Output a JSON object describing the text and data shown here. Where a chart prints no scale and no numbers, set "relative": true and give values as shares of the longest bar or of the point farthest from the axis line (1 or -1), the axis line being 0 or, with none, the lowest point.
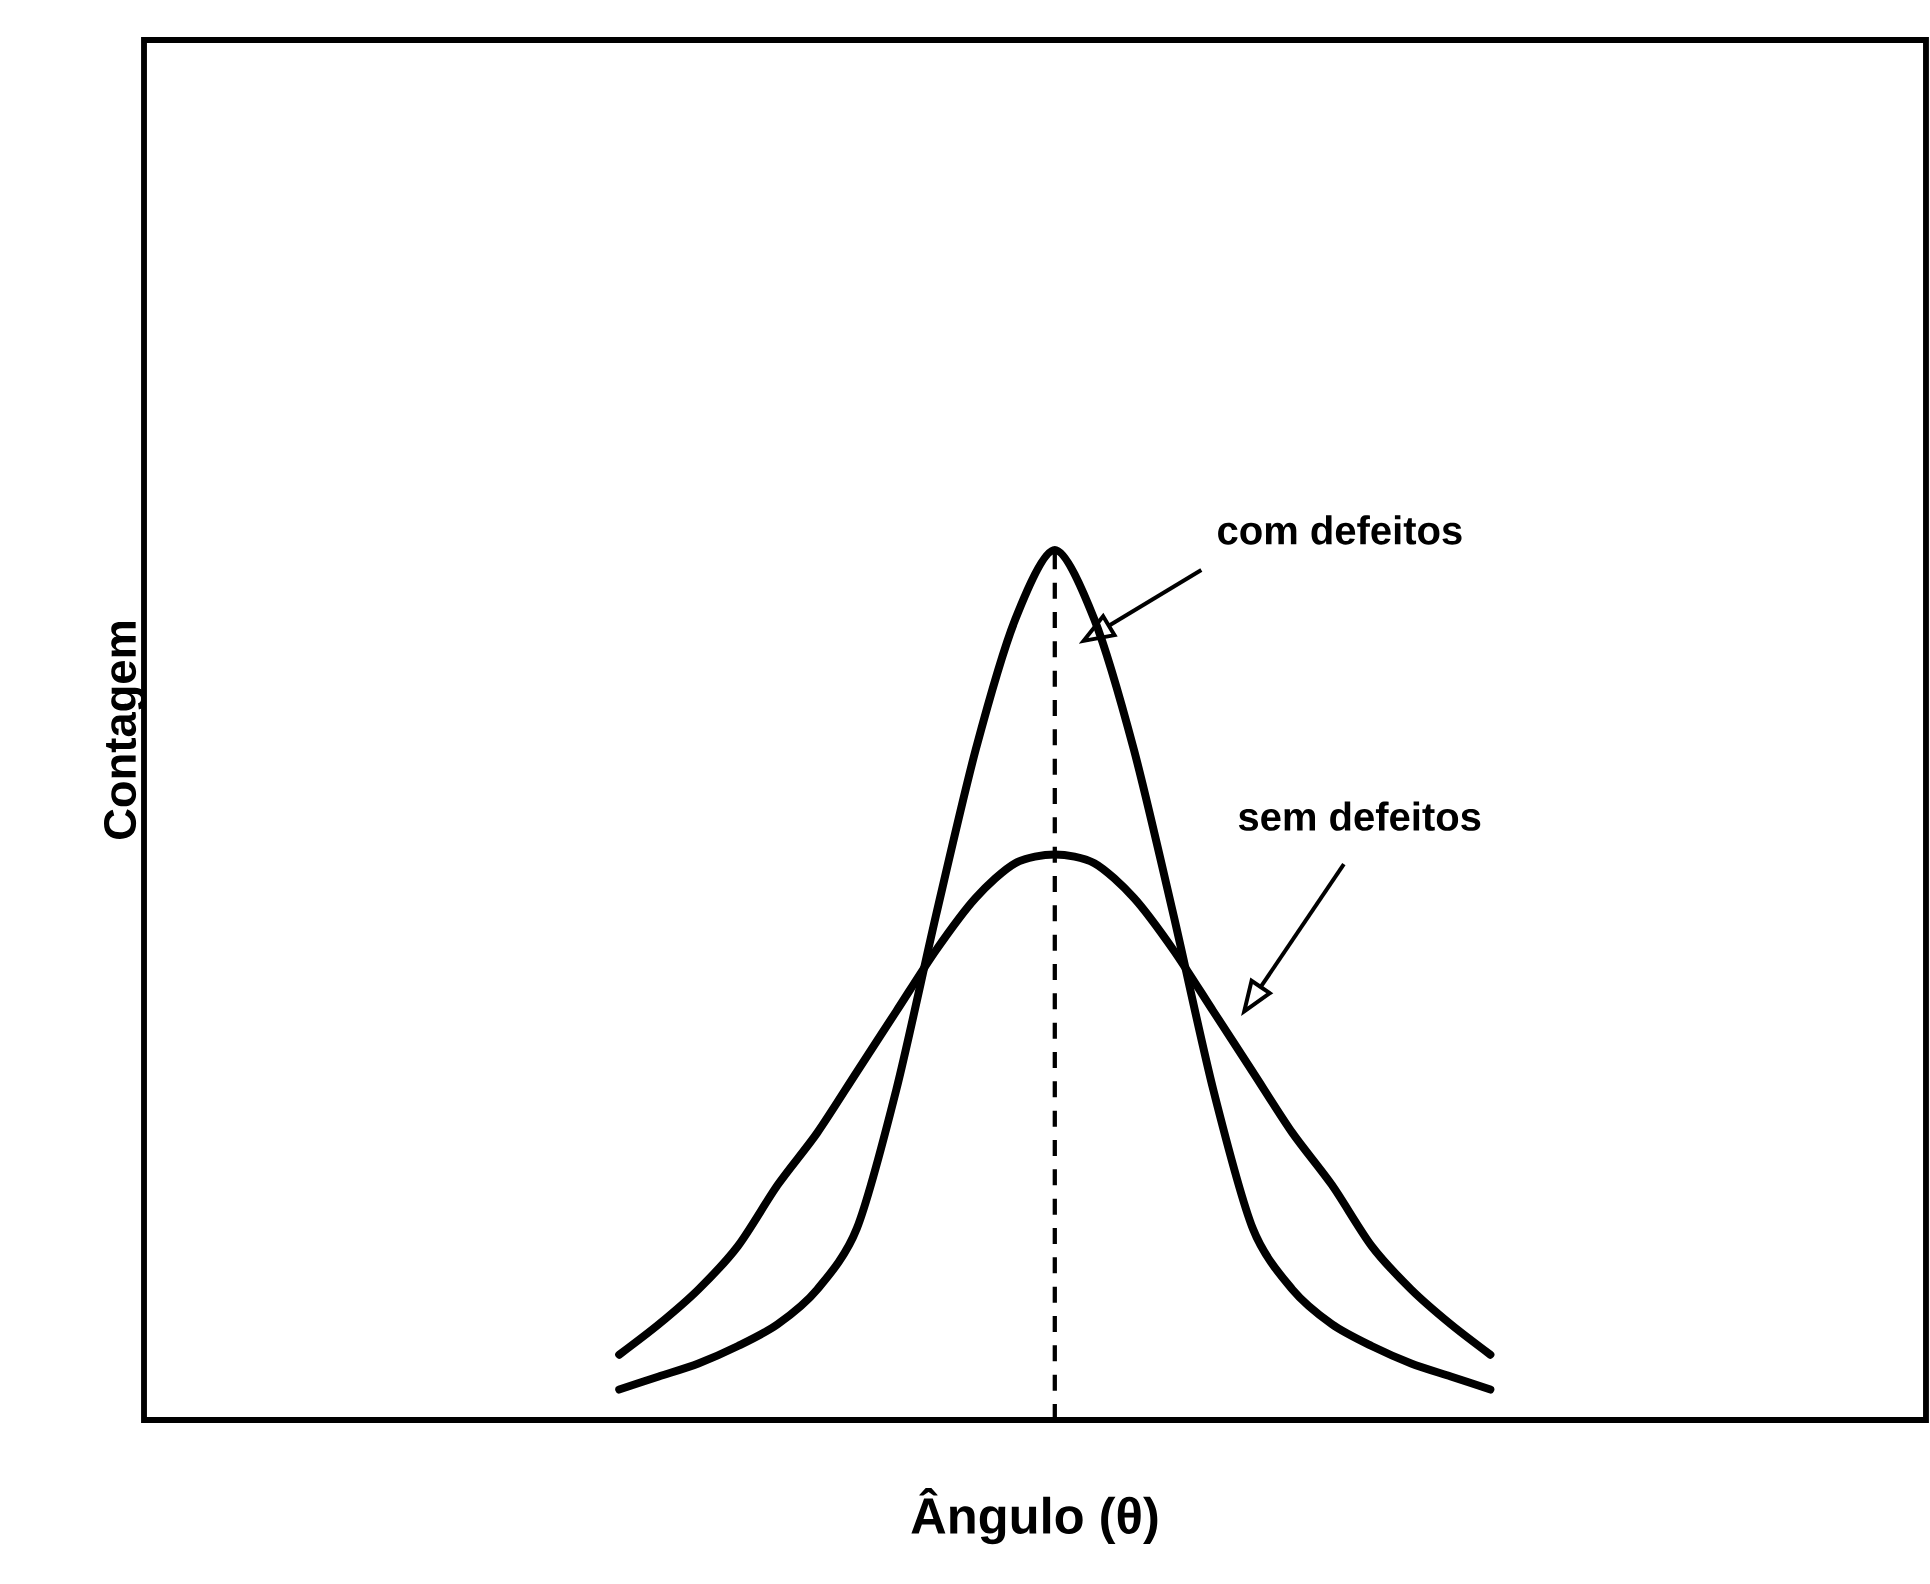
{
  "chart_data": {
    "type": "line",
    "relative": true,
    "xlabel": "Ângulo (θ)",
    "ylabel": "Contagem",
    "categories": [
      null,
      null,
      null,
      null,
      null,
      null,
      null,
      null,
      null,
      null,
      null,
      null,
      null,
      null,
      null,
      null,
      null,
      null,
      null,
      null,
      null,
      null,
      null,
      null,
      null,
      null,
      null,
      null,
      null,
      null,
      null,
      null,
      null,
      null,
      null,
      null,
      null,
      null,
      null,
      null,
      null,
      null,
      null,
      null,
      null,
      null
    ],
    "series": [
      {
        "color": "#000000",
        "values": [
          null,
          null,
          null,
          null,
          null,
          null,
          null,
          null,
          null,
          null,
          null,
          null,
          0.035,
          0.05,
          0.065,
          0.085,
          0.11,
          0.15,
          0.22,
          0.38,
          0.58,
          0.77,
          0.92,
          1,
          0.92,
          0.77,
          0.58,
          0.38,
          0.22,
          0.15,
          0.11,
          0.085,
          0.065,
          0.05,
          0.035,
          null,
          null,
          null,
          null,
          null,
          null,
          null,
          null,
          null,
          null,
          null
        ]
      },
      {
        "color": "#000000",
        "values": [
          null,
          null,
          null,
          null,
          null,
          null,
          null,
          null,
          null,
          null,
          null,
          null,
          0.075,
          0.11,
          0.15,
          0.2,
          0.27,
          0.33,
          0.4,
          0.47,
          0.54,
          0.6,
          0.64,
          0.65,
          0.64,
          0.6,
          0.54,
          0.47,
          0.4,
          0.33,
          0.27,
          0.2,
          0.15,
          0.11,
          0.075,
          null,
          null,
          null,
          null,
          null,
          null,
          null,
          null,
          null,
          null,
          null
        ]
      }
    ],
    "annotations": [
      "com defeitos",
      "sem defeitos"
    ]
  }
}
